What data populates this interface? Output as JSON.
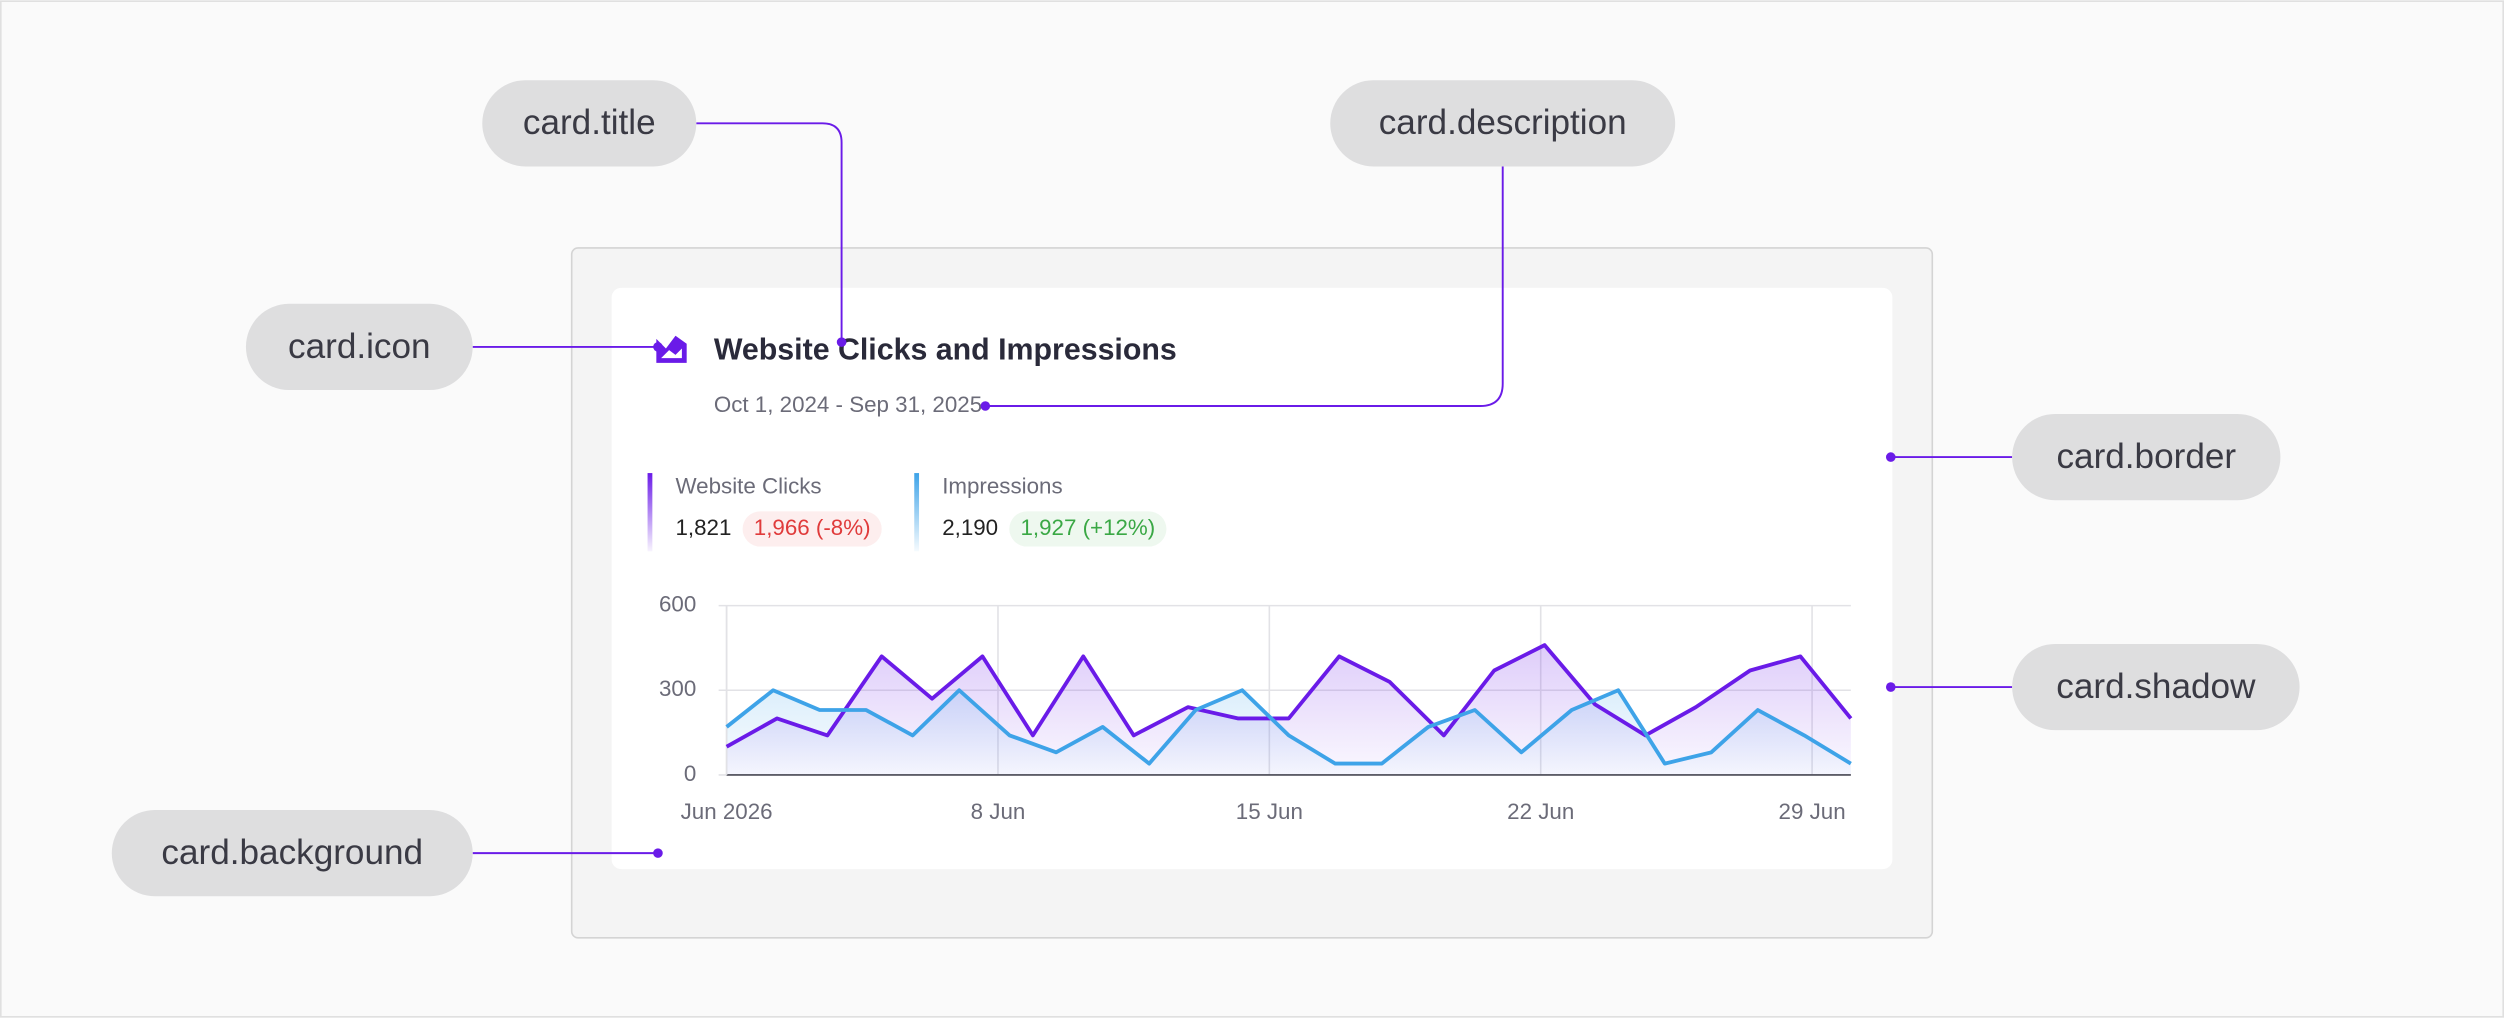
{
  "annotations": [
    {
      "label": "card.title"
    },
    {
      "label": "card.description"
    },
    {
      "label": "card.icon"
    },
    {
      "label": "card.border"
    },
    {
      "label": "card.shadow"
    },
    {
      "label": "card.background"
    }
  ],
  "card": {
    "title": "Website Clicks and Impressions",
    "description": "Oct 1, 2024 - Sep 31, 2025",
    "legend": [
      {
        "value": "1,821",
        "comparison": "1,966 (-8%)",
        "comparison_color": "#e03b3b",
        "comparison_background": "#fdeeee"
      },
      {
        "value": "2,190",
        "comparison": "1,927 (+12%)",
        "comparison_color": "#3aa845",
        "comparison_background": "#eef8ef"
      }
    ]
  },
  "chart_data": {
    "type": "line",
    "xlim": [
      1,
      30
    ],
    "xticks": [
      {
        "value": 1,
        "label": "Jun 2026"
      },
      {
        "value": 8,
        "label": "8 Jun"
      },
      {
        "value": 15,
        "label": "15 Jun"
      },
      {
        "value": 22,
        "label": "22 Jun"
      },
      {
        "value": 29,
        "label": "29 Jun"
      }
    ],
    "ylim": [
      0,
      600
    ],
    "yticks": [
      0,
      300,
      600
    ],
    "grid": true,
    "series": [
      {
        "name": "Website Clicks",
        "color": "#6a1be8",
        "x": [
          1,
          2.3,
          3.6,
          5,
          6.3,
          7.6,
          8.9,
          10.2,
          11.5,
          12.9,
          14.2,
          15.5,
          16.8,
          18.1,
          19.5,
          20.8,
          22.1,
          23.4,
          24.7,
          26,
          27.4,
          28.7,
          30
        ],
        "values": [
          100,
          200,
          140,
          420,
          270,
          420,
          140,
          420,
          140,
          240,
          200,
          200,
          420,
          330,
          140,
          370,
          460,
          250,
          140,
          240,
          370,
          420,
          200
        ]
      },
      {
        "name": "Impressions",
        "color": "#3ea3e8",
        "x": [
          1,
          2.2,
          3.4,
          4.6,
          5.8,
          7,
          8.3,
          9.5,
          10.7,
          11.9,
          13.1,
          14.3,
          15.5,
          16.7,
          17.9,
          19.1,
          20.3,
          21.5,
          22.8,
          24,
          25.2,
          26.4,
          27.6,
          28.8,
          30
        ],
        "values": [
          170,
          300,
          230,
          230,
          140,
          300,
          140,
          80,
          170,
          40,
          230,
          300,
          140,
          40,
          40,
          170,
          230,
          80,
          230,
          300,
          40,
          80,
          230,
          140,
          40
        ]
      }
    ]
  }
}
